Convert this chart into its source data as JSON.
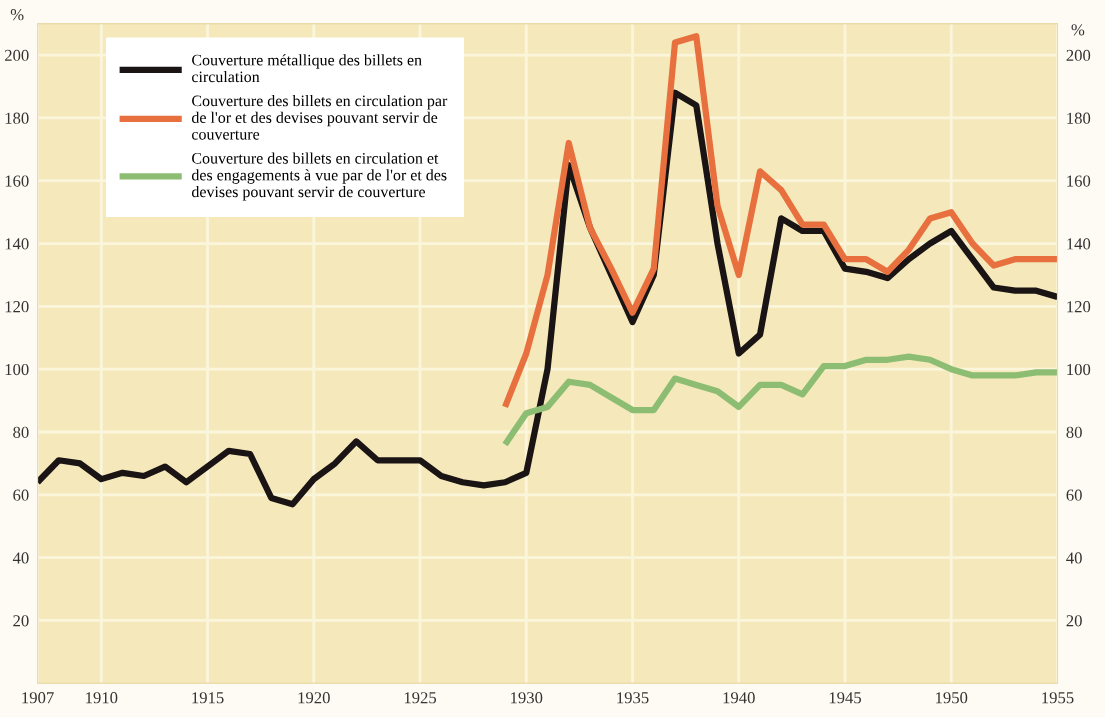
{
  "chart_data": {
    "type": "line",
    "ylabel": "%",
    "y2label": "%",
    "x": [
      1907,
      1908,
      1909,
      1910,
      1911,
      1912,
      1913,
      1914,
      1915,
      1916,
      1917,
      1918,
      1919,
      1920,
      1921,
      1922,
      1923,
      1924,
      1925,
      1926,
      1927,
      1928,
      1929,
      1930,
      1931,
      1932,
      1933,
      1934,
      1935,
      1936,
      1937,
      1938,
      1939,
      1940,
      1941,
      1942,
      1943,
      1944,
      1945,
      1946,
      1947,
      1948,
      1949,
      1950,
      1951,
      1952,
      1953,
      1954,
      1955
    ],
    "series": [
      {
        "name": "Couverture métallique des billets en circulation",
        "color": "#1a1414",
        "values": [
          64,
          71,
          70,
          65,
          67,
          66,
          69,
          64,
          69,
          74,
          73,
          59,
          57,
          65,
          70,
          77,
          71,
          71,
          71,
          66,
          64,
          63,
          64,
          67,
          100,
          165,
          145,
          130,
          115,
          130,
          188,
          184,
          140,
          105,
          111,
          148,
          144,
          144,
          132,
          131,
          129,
          135,
          140,
          144,
          135,
          126,
          125,
          125,
          123
        ]
      },
      {
        "name": "Couverture des billets en circulation par de l'or et des devises pouvant servir de couverture",
        "color": "#e8703f",
        "values": [
          null,
          null,
          null,
          null,
          null,
          null,
          null,
          null,
          null,
          null,
          null,
          null,
          null,
          null,
          null,
          null,
          null,
          null,
          null,
          null,
          null,
          null,
          88,
          105,
          130,
          172,
          145,
          132,
          118,
          132,
          204,
          206,
          152,
          130,
          163,
          157,
          146,
          146,
          135,
          135,
          131,
          138,
          148,
          150,
          140,
          133,
          135,
          135,
          135
        ]
      },
      {
        "name": "Couverture des billets en circulation et des engagements à vue par de l'or et des devises pouvant servir de couverture",
        "color": "#8dbd73",
        "values": [
          null,
          null,
          null,
          null,
          null,
          null,
          null,
          null,
          null,
          null,
          null,
          null,
          null,
          null,
          null,
          null,
          null,
          null,
          null,
          null,
          null,
          null,
          76,
          86,
          88,
          96,
          95,
          91,
          87,
          87,
          97,
          95,
          93,
          88,
          95,
          95,
          92,
          101,
          101,
          103,
          103,
          104,
          103,
          100,
          98,
          98,
          98,
          99,
          99
        ]
      }
    ],
    "xlim": [
      1907,
      1955
    ],
    "xticks": [
      1907,
      1910,
      1915,
      1920,
      1925,
      1930,
      1935,
      1940,
      1945,
      1950,
      1955
    ],
    "ylim": [
      0,
      210
    ],
    "yticks": [
      20,
      40,
      60,
      80,
      100,
      120,
      140,
      160,
      180,
      200
    ],
    "y2lim": [
      0,
      210
    ],
    "y2ticks": [
      20,
      40,
      60,
      80,
      100,
      120,
      140,
      160,
      180,
      200
    ],
    "grid": true,
    "legend": "top left",
    "marker": "none",
    "line_style": "solid"
  }
}
